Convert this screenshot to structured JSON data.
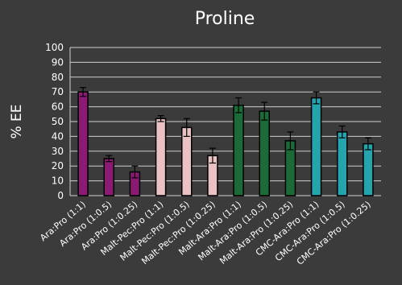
{
  "chart_data": {
    "type": "bar",
    "title": "Proline",
    "ylabel": "% EE",
    "xlabel": "",
    "ylim": [
      0,
      100
    ],
    "ytick_step": 10,
    "grid": true,
    "legend": "none",
    "categories": [
      "Ara:Pro (1:1)",
      "Ara:Pro (1:0.5)",
      "Ara:Pro (1:0.25)",
      "Malt-Pec:Pro (1:1)",
      "Malt-Pec:Pro (1:0.5)",
      "Malt-Pec:Pro (1:0.25)",
      "Malt-Ara:Pro (1:1)",
      "Malt-Ara:Pro (1:0.5)",
      "Malt-Ara:Pro (1:0.25)",
      "CMC-Ara:Pro (1:1)",
      "CMC-Ara:Pro (1:0.5)",
      "CMC-Ara:Pro (1:0.25)"
    ],
    "values": [
      70,
      25,
      16,
      52,
      46,
      27,
      61,
      57,
      37,
      66,
      43,
      35
    ],
    "errors": [
      3,
      2,
      4,
      2,
      6,
      5,
      5,
      6,
      6,
      4,
      4,
      4
    ],
    "colors": [
      "#8b1b72",
      "#8b1b72",
      "#8b1b72",
      "#ebc2c2",
      "#ebc2c2",
      "#ebc2c2",
      "#1a6b38",
      "#1a6b38",
      "#1a6b38",
      "#25a4ad",
      "#25a4ad",
      "#25a4ad"
    ],
    "colors_meaning": "bar fill colors per category group",
    "bar_outline": "#000000",
    "gridline_color": "#cfcfcf",
    "text_color": "#ffffff"
  }
}
